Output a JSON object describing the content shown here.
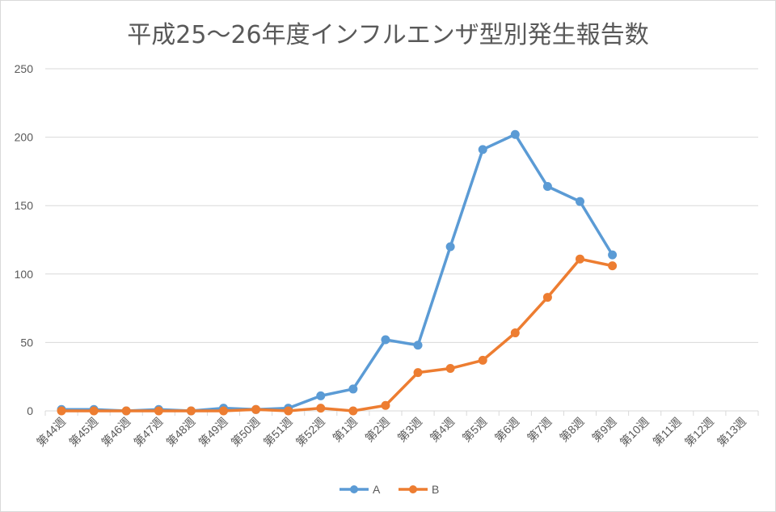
{
  "chart_data": {
    "type": "line",
    "title": "平成25～26年度インフルエンザ型別発生報告数",
    "categories": [
      "第44週",
      "第45週",
      "第46週",
      "第47週",
      "第48週",
      "第49週",
      "第50週",
      "第51週",
      "第52週",
      "第1週",
      "第2週",
      "第3週",
      "第4週",
      "第5週",
      "第6週",
      "第7週",
      "第8週",
      "第9週",
      "第10週",
      "第11週",
      "第12週",
      "第13週"
    ],
    "ylim": [
      0,
      250
    ],
    "yticks": [
      0,
      50,
      100,
      150,
      200,
      250
    ],
    "grid": true,
    "legend_position": "bottom",
    "series": [
      {
        "name": "A",
        "color": "#5b9bd5",
        "values": [
          1,
          1,
          0,
          1,
          0,
          2,
          1,
          2,
          11,
          16,
          52,
          48,
          120,
          191,
          202,
          164,
          153,
          114,
          null,
          null,
          null,
          null
        ]
      },
      {
        "name": "B",
        "color": "#ed7d31",
        "values": [
          0,
          0,
          0,
          0,
          0,
          0,
          1,
          0,
          2,
          0,
          4,
          28,
          31,
          37,
          57,
          83,
          111,
          106,
          null,
          null,
          null,
          null
        ]
      }
    ]
  }
}
